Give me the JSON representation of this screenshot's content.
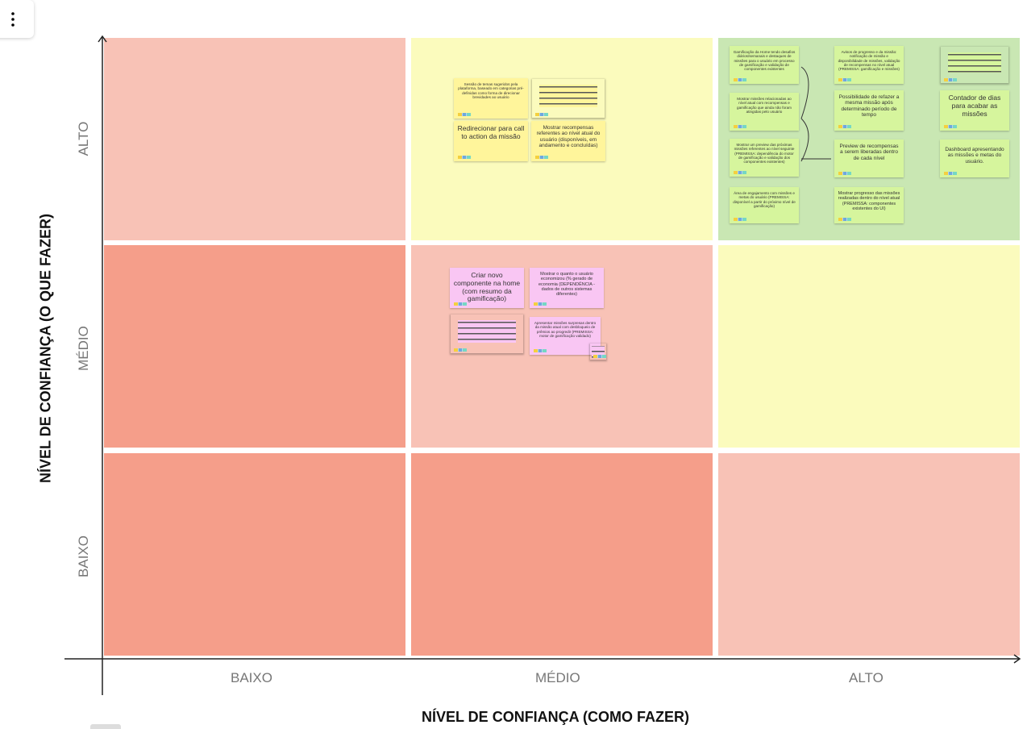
{
  "axes": {
    "y_title": "NÍVEL DE CONFIANÇA (O QUE FAZER)",
    "x_title": "NÍVEL DE CONFIANÇA (COMO FAZER)",
    "y_levels": [
      "ALTO",
      "MÉDIO",
      "BAIXO"
    ],
    "x_levels": [
      "BAIXO",
      "MÉDIO",
      "ALTO"
    ]
  },
  "notes": {
    "high_medium": [
      "Sessão de temas sugeridos pela plataforma, baseado em categorias pré-definidas como forma de direcionar brevidades ao usuário",
      "Redirecionar para call to action da missão",
      "Mostrar recompensas referentes ao nível atual do usuário (disponíveis, em andamento e concluídas)"
    ],
    "high_high": [
      "Gamificação da Home tendo desafios diários/semanais e destaques de missões para o usuário em processo de gamificação e validação de componentes existentes",
      "Mostrar missões relacionadas ao nível atual com recompensas e gamificação que ainda não foram atingidas pelo usuário",
      "Mostrar um preview das próximas missões referentes ao nível seguinte (PREMISSA: dependência do motor de gamificação e validação dos componentes existentes)",
      "Área de engajamento com missões e metas do usuário (PREMISSA: disponível a partir do próximo nível de gamificação)",
      "Avisos de progresso e da missão: notificação de missão e disponibilidade de missões, validação de recompensas no nível atual (PREMISSA: gamificação e missões)",
      "Possibilidade de refazer a mesma missão após determinado período de tempo",
      "Preview de recompensas a serem liberadas dentro de cada nível",
      "Mostrar progresso das missões realizadas dentro do nível atual (PREMISSA: componentes existentes do UI)",
      "Contador de dias para acabar as missões",
      "Dashboard apresentando as missões e metas do usuário."
    ],
    "medium_medium": [
      "Criar novo componente na home (com resumo da gamificação)",
      "Mostrar o quanto o usuário economizou (% gerado de economia (DEPENDÊNCIA - dados de outros sistemas diferentes)",
      "Apresentar missões surpresas dentro da missão atual com desbloqueio de prêmios ao progredir (PREMISSA: motor de gamificação validado)"
    ]
  }
}
